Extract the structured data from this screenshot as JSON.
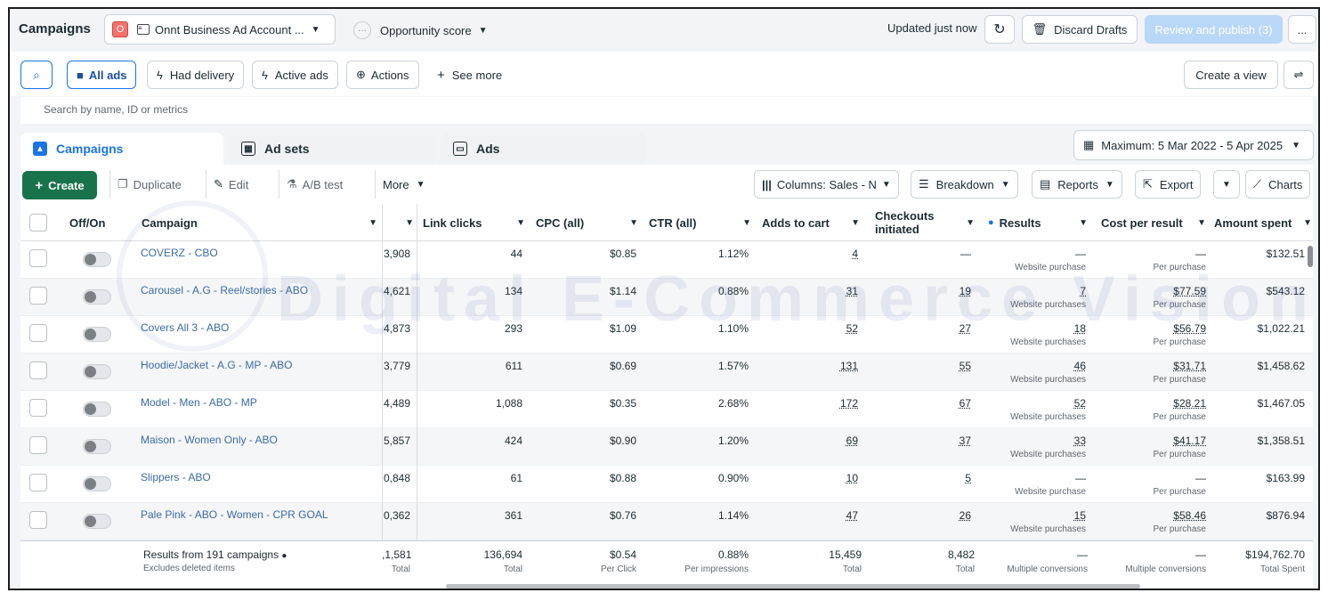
{
  "topbar": {
    "title": "Campaigns",
    "account_badge": "O",
    "account_name": "Onnt Business Ad Account ...",
    "opportunity": "Opportunity score",
    "updated": "Updated just now",
    "discard": "Discard Drafts",
    "review": "Review and publish (3)",
    "more": "..."
  },
  "filters": {
    "all_ads": "All ads",
    "had_delivery": "Had delivery",
    "active_ads": "Active ads",
    "actions": "Actions",
    "see_more": "See more",
    "create_view": "Create a view",
    "search_placeholder": "Search by name, ID or metrics"
  },
  "tabs": [
    {
      "label": "Campaigns"
    },
    {
      "label": "Ad sets"
    },
    {
      "label": "Ads"
    }
  ],
  "date_range": "Maximum: 5 Mar 2022 - 5 Apr 2025",
  "toolbar": {
    "create": "Create",
    "duplicate": "Duplicate",
    "edit": "Edit",
    "ab_test": "A/B test",
    "more": "More",
    "columns": "Columns: Sales - N",
    "breakdown": "Breakdown",
    "reports": "Reports",
    "export": "Export",
    "charts": "Charts"
  },
  "columns": {
    "off_on": "Off/On",
    "campaign": "Campaign",
    "link_clicks": "Link clicks",
    "cpc": "CPC (all)",
    "ctr": "CTR (all)",
    "adds_to_cart": "Adds to cart",
    "checkouts": "Checkouts initiated",
    "results": "Results",
    "cost_per_result": "Cost per result",
    "amount_spent": "Amount spent"
  },
  "rows": [
    {
      "name": "COVERZ - CBO",
      "reach": "3,908",
      "clicks": "44",
      "cpc": "$0.85",
      "ctr": "1.12%",
      "atc": "4",
      "checkouts": "—",
      "results": "—",
      "results_sub": "Website purchase",
      "cpr": "—",
      "cpr_sub": "Per purchase",
      "spent": "$132.51"
    },
    {
      "name": "Carousel - A.G - Reel/stories - ABO",
      "reach": "4,621",
      "clicks": "134",
      "cpc": "$1.14",
      "ctr": "0.88%",
      "atc": "31",
      "checkouts": "19",
      "results": "7",
      "results_sub": "Website purchases",
      "cpr": "$77.59",
      "cpr_sub": "Per purchase",
      "spent": "$543.12"
    },
    {
      "name": "Covers All 3 - ABO",
      "reach": "4,873",
      "clicks": "293",
      "cpc": "$1.09",
      "ctr": "1.10%",
      "atc": "52",
      "checkouts": "27",
      "results": "18",
      "results_sub": "Website purchases",
      "cpr": "$56.79",
      "cpr_sub": "Per purchase",
      "spent": "$1,022.21"
    },
    {
      "name": "Hoodie/Jacket - A.G - MP - ABO",
      "reach": "3,779",
      "clicks": "611",
      "cpc": "$0.69",
      "ctr": "1.57%",
      "atc": "131",
      "checkouts": "55",
      "results": "46",
      "results_sub": "Website purchases",
      "cpr": "$31.71",
      "cpr_sub": "Per purchase",
      "spent": "$1,458.62"
    },
    {
      "name": "Model - Men - ABO - MP",
      "reach": "4,489",
      "clicks": "1,088",
      "cpc": "$0.35",
      "ctr": "2.68%",
      "atc": "172",
      "checkouts": "67",
      "results": "52",
      "results_sub": "Website purchases",
      "cpr": "$28.21",
      "cpr_sub": "Per purchase",
      "spent": "$1,467.05"
    },
    {
      "name": "Maison - Women Only - ABO",
      "reach": "5,857",
      "clicks": "424",
      "cpc": "$0.90",
      "ctr": "1.20%",
      "atc": "69",
      "checkouts": "37",
      "results": "33",
      "results_sub": "Website purchases",
      "cpr": "$41.17",
      "cpr_sub": "Per purchase",
      "spent": "$1,358.51"
    },
    {
      "name": "Slippers - ABO",
      "reach": "0,848",
      "clicks": "61",
      "cpc": "$0.88",
      "ctr": "0.90%",
      "atc": "10",
      "checkouts": "5",
      "results": "—",
      "results_sub": "Website purchase",
      "cpr": "—",
      "cpr_sub": "Per purchase",
      "spent": "$163.99"
    },
    {
      "name": "Pale Pink - ABO - Women - CPR GOAL",
      "reach": "0,362",
      "clicks": "361",
      "cpc": "$0.76",
      "ctr": "1.14%",
      "atc": "47",
      "checkouts": "26",
      "results": "15",
      "results_sub": "Website purchases",
      "cpr": "$58.46",
      "cpr_sub": "Per purchase",
      "spent": "$876.94"
    }
  ],
  "totals": {
    "label": "Results from 191 campaigns",
    "sublabel": "Excludes deleted items",
    "reach": ",1,581",
    "reach_sub": "Total",
    "clicks": "136,694",
    "clicks_sub": "Total",
    "cpc": "$0.54",
    "cpc_sub": "Per Click",
    "ctr": "0.88%",
    "ctr_sub": "Per impressions",
    "atc": "15,459",
    "atc_sub": "Total",
    "checkouts": "8,482",
    "checkouts_sub": "Total",
    "results": "—",
    "results_sub": "Multiple conversions",
    "cpr": "—",
    "cpr_sub": "Multiple conversions",
    "spent": "$194,762.70",
    "spent_sub": "Total Spent"
  },
  "watermark": "Digital E-Commerce Vision",
  "colors": {
    "primary": "#1b74e4",
    "create_green": "#19734a",
    "link": "#3b6ba5"
  }
}
